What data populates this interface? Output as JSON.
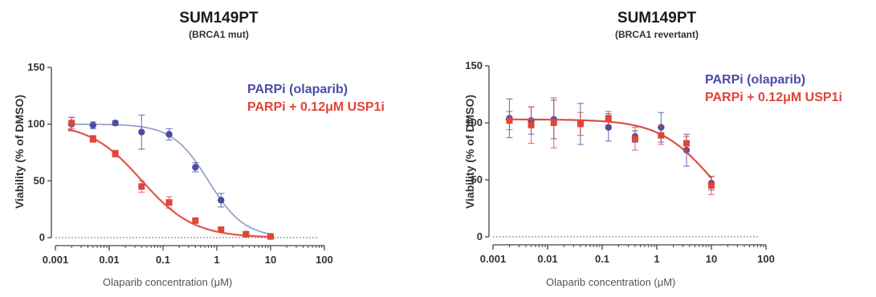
{
  "colors": {
    "series_blue": "#4a4ca8",
    "series_red": "#e0443a",
    "axis": "#444444"
  },
  "chart_data": [
    {
      "type": "scatter",
      "title": "SUM149PT",
      "subtitle": "(BRCA1 mut)",
      "xlabel": "Olaparib concentration (μM)",
      "ylabel": "Viability (% of DMSO)",
      "xscale": "log",
      "xlim": [
        0.001,
        100
      ],
      "ylim": [
        0,
        150
      ],
      "xticks": [
        0.001,
        0.01,
        0.1,
        1,
        10,
        100
      ],
      "xtick_labels": [
        "0.001",
        "0.01",
        "0.1",
        "1",
        "10",
        "100"
      ],
      "yticks": [
        0,
        50,
        100,
        150
      ],
      "ytick_labels": [
        "0",
        "50",
        "100",
        "150"
      ],
      "grid": false,
      "legend_position": "top-right",
      "series": [
        {
          "name": "PARPi (olaparib)",
          "color": "#4a4ca8",
          "marker": "circle",
          "x": [
            0.002,
            0.005,
            0.013,
            0.04,
            0.13,
            0.4,
            1.2,
            3.5,
            10
          ],
          "y": [
            100,
            99,
            101,
            93,
            91,
            62,
            33,
            3,
            1
          ],
          "err": [
            6,
            3,
            2,
            15,
            5,
            4,
            6,
            2,
            1
          ],
          "fit": {
            "top": 100,
            "bottom": 0,
            "ic50": 0.7,
            "hill": 1.3
          }
        },
        {
          "name": "PARPi + 0.12μM USP1i",
          "color": "#e0443a",
          "marker": "square",
          "x": [
            0.002,
            0.005,
            0.013,
            0.04,
            0.13,
            0.4,
            1.2,
            3.5,
            10
          ],
          "y": [
            101,
            87,
            74,
            45,
            31,
            15,
            7,
            3,
            1
          ],
          "err": [
            5,
            3,
            3,
            5,
            5,
            2,
            2,
            1,
            1
          ],
          "fit": {
            "top": 101,
            "bottom": 0,
            "ic50": 0.04,
            "hill": 0.9
          }
        }
      ]
    },
    {
      "type": "scatter",
      "title": "SUM149PT",
      "subtitle": "(BRCA1 revertant)",
      "xlabel": "Olaparib concentration (μM)",
      "ylabel": "Viability (% of DMSO)",
      "xscale": "log",
      "xlim": [
        0.001,
        100
      ],
      "ylim": [
        0,
        150
      ],
      "xticks": [
        0.001,
        0.01,
        0.1,
        1,
        10,
        100
      ],
      "xtick_labels": [
        "0.001",
        "0.01",
        "0.1",
        "1",
        "10",
        "100"
      ],
      "yticks": [
        0,
        50,
        100,
        150
      ],
      "ytick_labels": [
        "0",
        "50",
        "100",
        "150"
      ],
      "grid": false,
      "legend_position": "top-right",
      "series": [
        {
          "name": "PARPi (olaparib)",
          "color": "#4a4ca8",
          "marker": "circle",
          "x": [
            0.002,
            0.005,
            0.013,
            0.04,
            0.13,
            0.4,
            1.2,
            3.5,
            10
          ],
          "y": [
            104,
            102,
            103,
            99,
            96,
            88,
            96,
            76,
            47
          ],
          "err": [
            17,
            12,
            17,
            18,
            12,
            5,
            13,
            14,
            6
          ],
          "fit": {
            "top": 103,
            "bottom": 0,
            "ic50": 10,
            "hill": 0.9
          }
        },
        {
          "name": "PARPi + 0.12μM USP1i",
          "color": "#e0443a",
          "marker": "square",
          "x": [
            0.002,
            0.005,
            0.013,
            0.04,
            0.13,
            0.4,
            1.2,
            3.5,
            10
          ],
          "y": [
            102,
            98,
            100,
            99,
            104,
            86,
            89,
            82,
            45
          ],
          "err": [
            8,
            16,
            22,
            10,
            6,
            10,
            8,
            6,
            8
          ],
          "fit": {
            "top": 103,
            "bottom": 0,
            "ic50": 10,
            "hill": 0.9
          }
        }
      ]
    }
  ]
}
